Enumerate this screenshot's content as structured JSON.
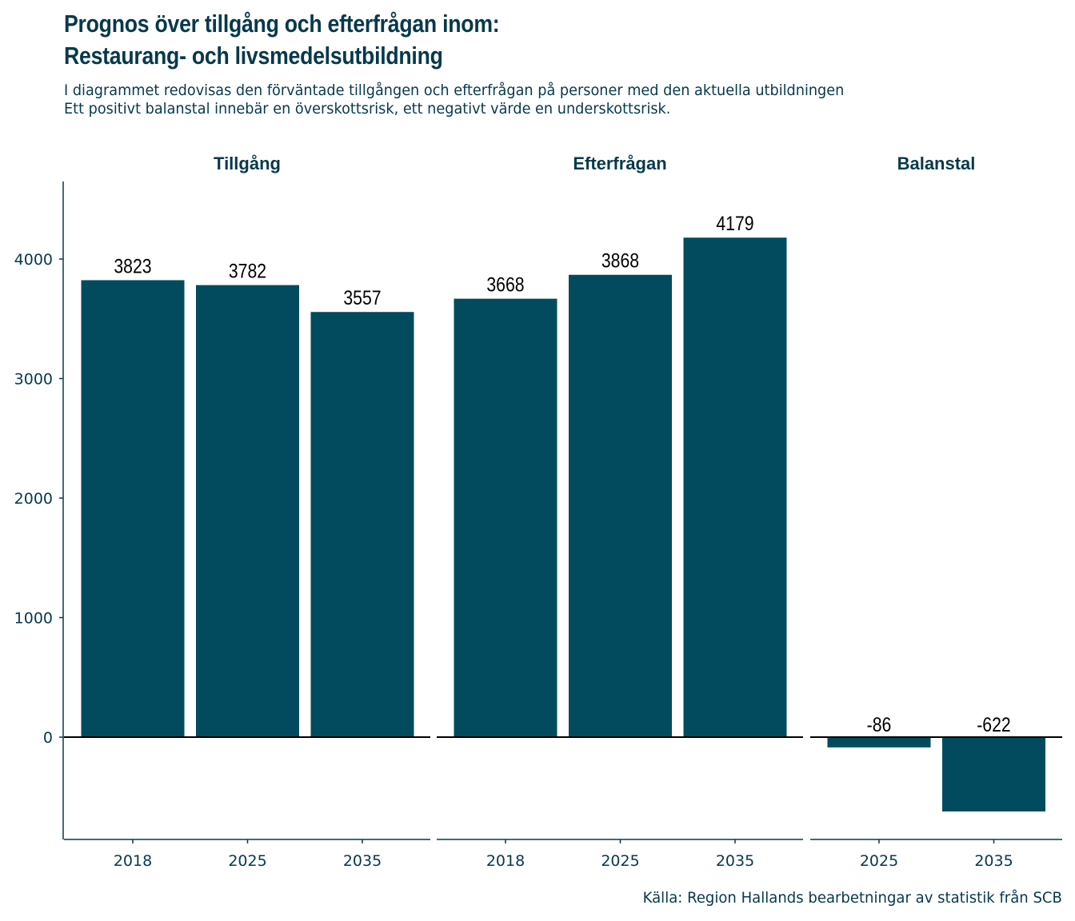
{
  "title": {
    "line1": "Prognos över tillgång och efterfrågan inom:",
    "line2": "Restaurang- och livsmedelsutbildning"
  },
  "subtitle": {
    "line1": "I diagrammet redovisas den förväntade tillgången och efterfrågan på personer med den aktuella utbildningen",
    "line2": "Ett positivt balanstal innebär en överskottsrisk, ett negativt värde en underskottsrisk."
  },
  "caption": "Källa: Region Hallands bearbetningar av statistik från SCB",
  "colors": {
    "bar": "#024b5e",
    "text": "#06394c",
    "axis": "#06394c",
    "zero_line": "#000000"
  },
  "chart_data": {
    "type": "bar",
    "facets": [
      {
        "name": "Tillgång",
        "categories": [
          "2018",
          "2025",
          "2035"
        ],
        "values": [
          3823,
          3782,
          3557
        ]
      },
      {
        "name": "Efterfrågan",
        "categories": [
          "2018",
          "2025",
          "2035"
        ],
        "values": [
          3668,
          3868,
          4179
        ]
      },
      {
        "name": "Balanstal",
        "categories": [
          "2025",
          "2035"
        ],
        "values": [
          -86,
          -622
        ]
      }
    ],
    "yticks": [
      0,
      1000,
      2000,
      3000,
      4000
    ],
    "ylim": [
      -860,
      4660
    ],
    "data_labels": true,
    "grid": false,
    "legend": "none"
  }
}
